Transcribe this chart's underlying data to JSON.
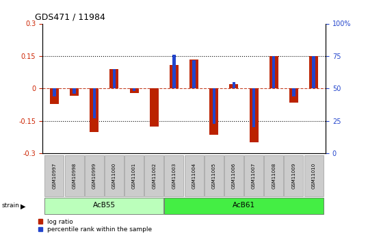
{
  "title": "GDS471 / 11984",
  "samples": [
    "GSM10997",
    "GSM10998",
    "GSM10999",
    "GSM11000",
    "GSM11001",
    "GSM11002",
    "GSM11003",
    "GSM11004",
    "GSM11005",
    "GSM11006",
    "GSM11007",
    "GSM11008",
    "GSM11009",
    "GSM11010"
  ],
  "log_ratio": [
    -0.07,
    -0.035,
    -0.2,
    0.09,
    -0.02,
    -0.175,
    0.11,
    0.135,
    -0.215,
    0.02,
    -0.25,
    0.15,
    -0.065,
    0.15
  ],
  "percentile": [
    44,
    46,
    27,
    65,
    48,
    50,
    76,
    72,
    23,
    55,
    20,
    75,
    44,
    75
  ],
  "groups": [
    {
      "label": "AcB55",
      "start": 0,
      "end": 5,
      "color": "#bbffbb"
    },
    {
      "label": "AcB61",
      "start": 6,
      "end": 13,
      "color": "#44ee44"
    }
  ],
  "ylim_left": [
    -0.3,
    0.3
  ],
  "ylim_right": [
    0,
    100
  ],
  "yticks_left": [
    -0.3,
    -0.15,
    0.0,
    0.15,
    0.3
  ],
  "yticks_right": [
    0,
    25,
    50,
    75,
    100
  ],
  "hlines_dotted": [
    0.15,
    -0.15
  ],
  "hline_zero": 0.0,
  "red_bar_width": 0.45,
  "blue_bar_width": 0.15,
  "red_color": "#bb2200",
  "blue_color": "#2244cc",
  "bg_color": "#ffffff",
  "left_tick_color": "#cc2200",
  "right_tick_color": "#2244cc",
  "sample_box_color": "#cccccc",
  "sample_box_edge": "#999999"
}
